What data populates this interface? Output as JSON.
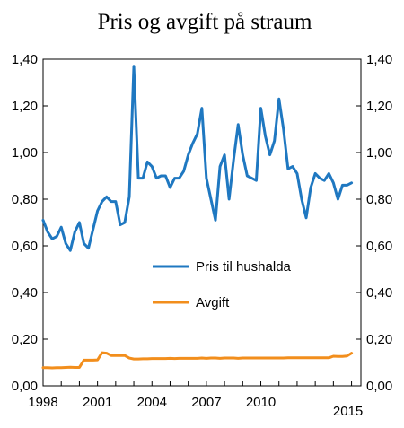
{
  "chart_data": {
    "type": "line",
    "title": "Pris og avgift på straum",
    "xlabel": "",
    "ylabel": "",
    "x_ticks": [
      "1998",
      "2001",
      "2004",
      "2007",
      "2010",
      "2015"
    ],
    "x_start": "1998-Q1",
    "x_end": "2015-Q4",
    "ylim": [
      0,
      1.4
    ],
    "y_ticks": [
      "0,00",
      "0,20",
      "0,40",
      "0,60",
      "0,80",
      "1,00",
      "1,20",
      "1,40"
    ],
    "dual_y_axis": true,
    "grid": false,
    "legend_position": "center-right",
    "series": [
      {
        "name": "Pris til hushalda",
        "color": "#1f78c1",
        "values": [
          0.71,
          0.66,
          0.63,
          0.64,
          0.68,
          0.61,
          0.58,
          0.66,
          0.7,
          0.61,
          0.59,
          0.67,
          0.75,
          0.79,
          0.81,
          0.79,
          0.79,
          0.69,
          0.7,
          0.81,
          1.37,
          0.89,
          0.89,
          0.96,
          0.94,
          0.89,
          0.9,
          0.9,
          0.85,
          0.89,
          0.89,
          0.92,
          0.99,
          1.04,
          1.08,
          1.19,
          0.89,
          0.8,
          0.71,
          0.94,
          0.99,
          0.8,
          0.97,
          1.12,
          0.99,
          0.9,
          0.89,
          0.88,
          1.19,
          1.07,
          0.99,
          1.05,
          1.23,
          1.1,
          0.93,
          0.94,
          0.91,
          0.8,
          0.72,
          0.85,
          0.91,
          0.89,
          0.88,
          0.91,
          0.87,
          0.8,
          0.86,
          0.86,
          0.87
        ]
      },
      {
        "name": "Avgift",
        "color": "#f28e1c",
        "values": [
          0.078,
          0.078,
          0.077,
          0.078,
          0.078,
          0.079,
          0.08,
          0.079,
          0.079,
          0.11,
          0.11,
          0.11,
          0.111,
          0.142,
          0.14,
          0.13,
          0.13,
          0.13,
          0.13,
          0.119,
          0.115,
          0.115,
          0.116,
          0.116,
          0.117,
          0.117,
          0.117,
          0.117,
          0.118,
          0.117,
          0.118,
          0.118,
          0.118,
          0.118,
          0.118,
          0.119,
          0.118,
          0.119,
          0.119,
          0.118,
          0.119,
          0.119,
          0.119,
          0.118,
          0.119,
          0.119,
          0.119,
          0.119,
          0.119,
          0.119,
          0.119,
          0.119,
          0.119,
          0.119,
          0.12,
          0.12,
          0.12,
          0.12,
          0.12,
          0.12,
          0.12,
          0.12,
          0.12,
          0.12,
          0.127,
          0.126,
          0.126,
          0.128,
          0.14
        ]
      }
    ]
  }
}
